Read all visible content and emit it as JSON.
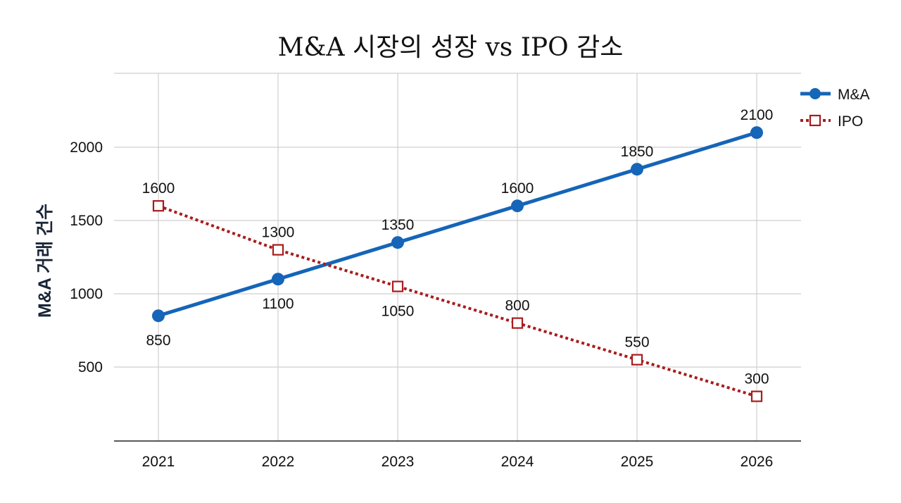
{
  "chart_data": {
    "type": "line",
    "title": "M&A 시장의 성장 vs IPO 감소",
    "xlabel": "",
    "ylabel": "M&A 거래 건수",
    "x": [
      "2021",
      "2022",
      "2023",
      "2024",
      "2025",
      "2026"
    ],
    "ylim": [
      0,
      2500
    ],
    "yticks": [
      500,
      1000,
      1500,
      2000
    ],
    "grid": true,
    "legend_position": "top-right",
    "series": [
      {
        "name": "M&A",
        "values": [
          850,
          1100,
          1350,
          1600,
          1850,
          2100
        ],
        "color": "#1565b8",
        "marker": "circle",
        "line": "solid",
        "label_positions": [
          "below",
          "below",
          "above",
          "above",
          "above",
          "above"
        ]
      },
      {
        "name": "IPO",
        "values": [
          1600,
          1300,
          1050,
          800,
          550,
          300
        ],
        "color": "#a81c1c",
        "marker": "square-open",
        "line": "dotted",
        "label_positions": [
          "above",
          "above",
          "below",
          "above",
          "above",
          "above"
        ]
      }
    ]
  }
}
